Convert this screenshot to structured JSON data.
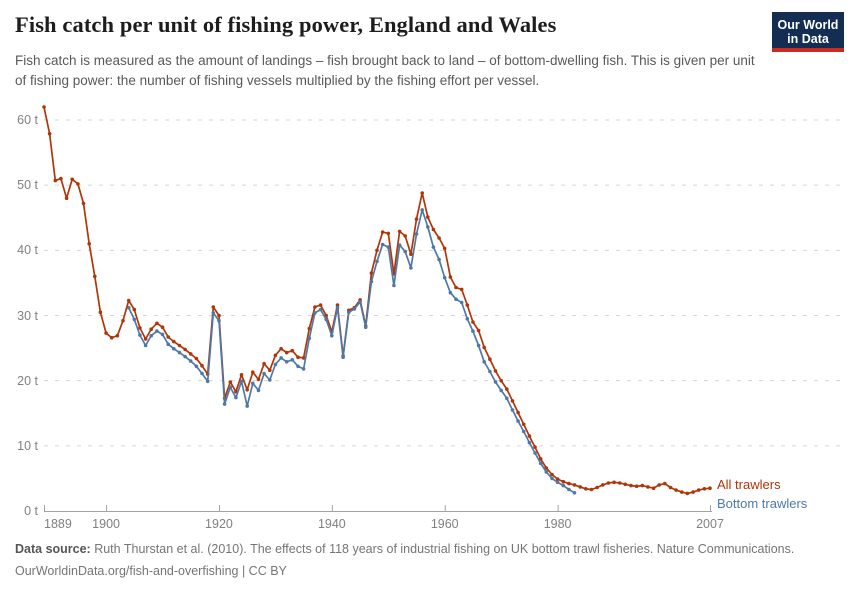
{
  "header": {
    "title": "Fish catch per unit of fishing power, England and Wales",
    "subtitle": "Fish catch is measured as the amount of landings – fish brought back to land – of bottom-dwelling fish. This is given per unit of fishing power: the number of fishing vessels multiplied by the fishing effort per vessel.",
    "logo": {
      "line1": "Our World",
      "line2": "in Data",
      "bg_color": "#132E52",
      "stripe_color": "#CC2A1D",
      "text_color": "#FFFFFF"
    }
  },
  "chart_data": {
    "type": "line",
    "title": "Fish catch per unit of fishing power, England and Wales",
    "xlabel": "",
    "ylabel": "",
    "x_ticks": [
      1889,
      1900,
      1920,
      1940,
      1960,
      1980,
      2007
    ],
    "y_ticks": [
      0,
      10,
      20,
      30,
      40,
      50,
      60
    ],
    "y_unit": "t",
    "xlim": [
      1889,
      2007
    ],
    "ylim": [
      0,
      62
    ],
    "grid": "horizontal-dashed",
    "grid_color": "#d6d6d6",
    "axis_color": "#a3a3a3",
    "legend_position": "right-of-line-end",
    "series": [
      {
        "name": "All trawlers",
        "color": "#B13507",
        "start_year": 1889,
        "values": [
          62.0,
          57.9,
          50.7,
          51.0,
          48.0,
          50.9,
          50.2,
          47.2,
          41.0,
          36.0,
          30.5,
          27.3,
          26.6,
          26.9,
          29.2,
          32.3,
          30.9,
          28.1,
          26.4,
          27.9,
          28.8,
          28.2,
          26.7,
          26.0,
          25.4,
          24.8,
          24.1,
          23.4,
          22.3,
          21.0,
          31.3,
          30.0,
          17.3,
          19.8,
          18.3,
          20.9,
          18.6,
          21.3,
          20.2,
          22.6,
          21.6,
          23.9,
          24.9,
          24.3,
          24.6,
          23.6,
          23.5,
          28.0,
          31.3,
          31.6,
          30.0,
          27.5,
          31.6,
          23.8,
          30.8,
          31.2,
          32.4,
          28.4,
          36.5,
          40.0,
          42.8,
          42.6,
          36.4,
          42.9,
          42.2,
          39.4,
          44.8,
          48.8,
          45.1,
          43.2,
          41.9,
          40.3,
          35.9,
          34.3,
          34.0,
          31.6,
          29.0,
          27.7,
          25.1,
          23.3,
          21.5,
          20.0,
          18.7,
          16.9,
          15.1,
          13.3,
          11.5,
          9.8,
          8.0,
          6.6,
          5.6,
          4.9,
          4.5,
          4.2,
          4.0,
          3.7,
          3.4,
          3.3,
          3.6,
          4.0,
          4.3,
          4.4,
          4.3,
          4.1,
          3.9,
          3.8,
          3.9,
          3.7,
          3.5,
          4.0,
          4.2,
          3.6,
          3.2,
          2.9,
          2.7,
          2.9,
          3.2,
          3.4,
          3.5
        ]
      },
      {
        "name": "Bottom trawlers",
        "color": "#4E79A7",
        "start_year": 1904,
        "values": [
          31.2,
          29.4,
          27.0,
          25.4,
          26.9,
          27.6,
          27.1,
          25.6,
          24.9,
          24.3,
          23.7,
          23.0,
          22.2,
          21.1,
          19.9,
          30.4,
          29.2,
          16.4,
          19.0,
          17.4,
          19.9,
          16.1,
          19.6,
          18.5,
          21.1,
          20.1,
          22.5,
          23.5,
          22.9,
          23.2,
          22.2,
          21.8,
          26.5,
          30.4,
          30.9,
          29.4,
          26.9,
          31.2,
          23.6,
          30.5,
          31.0,
          32.1,
          28.2,
          35.2,
          38.3,
          40.9,
          40.5,
          34.6,
          40.8,
          39.8,
          37.3,
          42.5,
          46.2,
          43.6,
          40.5,
          38.6,
          35.8,
          33.5,
          32.5,
          32.0,
          29.5,
          27.6,
          25.4,
          22.9,
          21.4,
          19.8,
          18.5,
          17.3,
          15.5,
          13.8,
          12.2,
          10.5,
          8.9,
          7.3,
          6.0,
          5.0,
          4.4,
          3.9,
          3.3,
          2.8
        ]
      }
    ]
  },
  "footer": {
    "source_label": "Data source:",
    "source_text": " Ruth Thurstan et al. (2010). The effects of 118 years of industrial fishing on UK bottom trawl fisheries. Nature Communications.",
    "license_line": "OurWorldinData.org/fish-and-overfishing | CC BY"
  }
}
